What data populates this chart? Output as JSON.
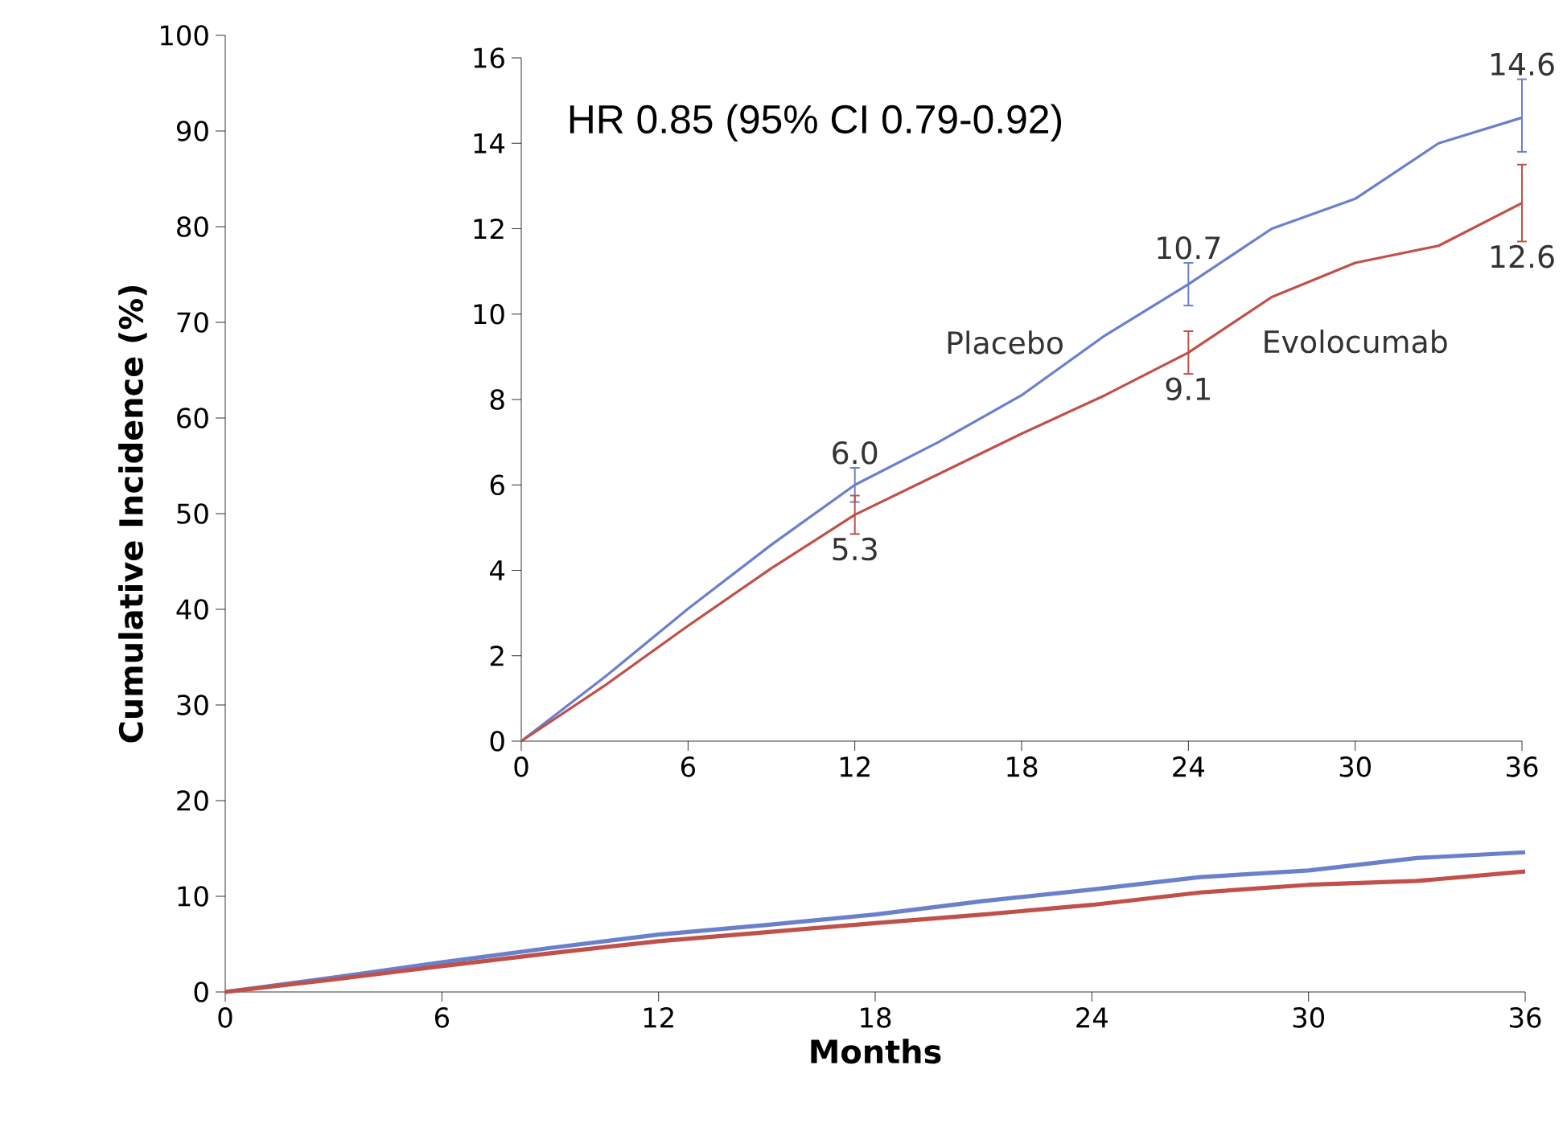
{
  "chart_data": [
    {
      "type": "line",
      "xlabel": "Months",
      "ylabel": "Cumulative Incidence (%)",
      "x": [
        0,
        3,
        6,
        9,
        12,
        15,
        18,
        21,
        24,
        27,
        30,
        33,
        36
      ],
      "series": [
        {
          "color": "#6a80cc",
          "values": [
            0,
            1.5,
            3.1,
            4.6,
            6.0,
            7.0,
            8.1,
            9.5,
            10.7,
            12.0,
            12.7,
            14.0,
            14.6
          ]
        },
        {
          "color": "#c0504a",
          "values": [
            0,
            1.3,
            2.7,
            4.05,
            5.3,
            6.25,
            7.2,
            8.1,
            9.1,
            10.4,
            11.2,
            11.6,
            12.6
          ]
        }
      ],
      "xlim": [
        0,
        36
      ],
      "ylim": [
        0,
        100
      ],
      "xticks": [
        0,
        6,
        12,
        18,
        24,
        30,
        36
      ],
      "yticks": [
        0,
        10,
        20,
        30,
        40,
        50,
        60,
        70,
        80,
        90,
        100
      ]
    },
    {
      "type": "line",
      "x": [
        0,
        3,
        6,
        9,
        12,
        15,
        18,
        21,
        24,
        27,
        30,
        33,
        36
      ],
      "series": [
        {
          "name": "Placebo",
          "color": "#6a80cc",
          "values": [
            0,
            1.5,
            3.1,
            4.6,
            6.0,
            7.0,
            8.1,
            9.5,
            10.7,
            12.0,
            12.7,
            14.0,
            14.6
          ],
          "errors": [
            null,
            null,
            null,
            null,
            0.4,
            null,
            null,
            null,
            0.5,
            null,
            null,
            null,
            [
              13.8,
              15.5
            ]
          ],
          "value_labels": [
            null,
            null,
            null,
            null,
            "6.0",
            null,
            null,
            null,
            "10.7",
            null,
            null,
            null,
            "14.6"
          ]
        },
        {
          "name": "Evolocumab",
          "color": "#c0504a",
          "values": [
            0,
            1.3,
            2.7,
            4.05,
            5.3,
            6.25,
            7.2,
            8.1,
            9.1,
            10.4,
            11.2,
            11.6,
            12.6
          ],
          "errors": [
            null,
            null,
            null,
            null,
            0.45,
            null,
            null,
            null,
            0.5,
            null,
            null,
            null,
            [
              11.7,
              13.5
            ]
          ],
          "value_labels": [
            null,
            null,
            null,
            null,
            "5.3",
            null,
            null,
            null,
            "9.1",
            null,
            null,
            null,
            "12.6"
          ]
        }
      ],
      "xlim": [
        0,
        36
      ],
      "ylim": [
        0,
        16
      ],
      "xticks": [
        0,
        6,
        12,
        18,
        24,
        30,
        36
      ],
      "yticks": [
        0,
        2,
        4,
        6,
        8,
        10,
        12,
        14,
        16
      ],
      "annotations": [
        "HR 0.85 (95% CI 0.79-0.92)"
      ]
    }
  ]
}
